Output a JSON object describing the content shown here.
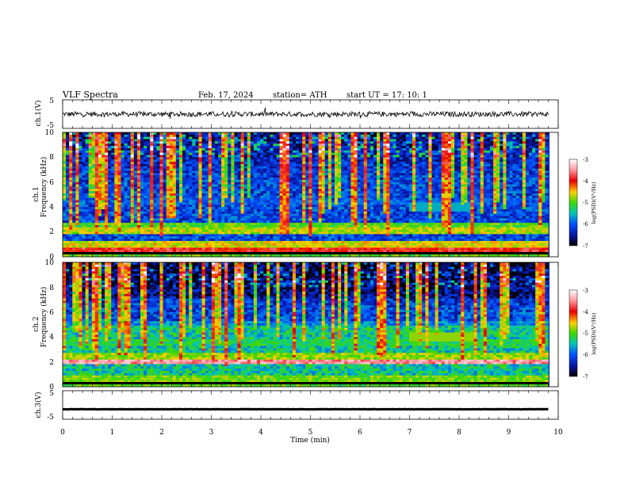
{
  "header": {
    "title": "VLF  Spectra",
    "date": "Feb. 17, 2024",
    "station": "station= ATH",
    "start_ut": "start  UT  =    17: 10: 1"
  },
  "chart_data": [
    {
      "type": "line",
      "panel": "ch1-waveform",
      "ylabel": "ch.1(V)",
      "y_ticks": [
        "5",
        "-5"
      ],
      "ylim": [
        -5,
        5
      ],
      "xlim": [
        0,
        10
      ],
      "baseline": 0,
      "noise_amplitude": 0.9
    },
    {
      "type": "heatmap",
      "panel": "ch1-spectrogram",
      "ylabel_top": "ch.1",
      "ylabel": "Frequency  (kHz)",
      "y_ticks": [
        "0",
        "2",
        "4",
        "6",
        "8",
        "10"
      ],
      "ylim": [
        0,
        10
      ],
      "xlim": [
        0,
        9.8
      ],
      "colorbar": {
        "label": "log(PSD)(V²/Hz)",
        "ticks": [
          "-3",
          "-4",
          "-5",
          "-6",
          "-7"
        ],
        "range": [
          -7,
          -3
        ]
      },
      "bands": [
        {
          "f": 0.1,
          "level": -5.0
        },
        {
          "f": 0.5,
          "level": -3.9
        },
        {
          "f": 1.0,
          "level": -4.6
        },
        {
          "f": 2.1,
          "level": -4.7
        },
        {
          "f": 2.4,
          "level": -5.0
        },
        {
          "f": 4.5,
          "level": -6.1
        }
      ]
    },
    {
      "type": "heatmap",
      "panel": "ch2-spectrogram",
      "ylabel_top": "ch.2",
      "ylabel": "Frequency  (kHz)",
      "y_ticks": [
        "0",
        "2",
        "4",
        "6",
        "8",
        "10"
      ],
      "ylim": [
        0,
        10
      ],
      "xlim": [
        0,
        9.8
      ],
      "colorbar": {
        "label": "log(PSD)(V²/Hz)",
        "ticks": [
          "-3",
          "-4",
          "-5",
          "-6",
          "-7"
        ],
        "range": [
          -7,
          -3
        ]
      },
      "bands": [
        {
          "f": 0.1,
          "level": -5.0
        },
        {
          "f": 0.6,
          "level": -4.9
        },
        {
          "f": 2.0,
          "level": -3.5
        },
        {
          "f": 2.5,
          "level": -4.8
        },
        {
          "f": 3.5,
          "level": -5.3
        },
        {
          "f": 5.0,
          "level": -5.8
        }
      ]
    },
    {
      "type": "line",
      "panel": "ch3-waveform",
      "ylabel": "ch.3(V)",
      "y_ticks": [
        "5",
        "-5"
      ],
      "ylim": [
        -5,
        5
      ],
      "xlim": [
        0,
        10
      ],
      "baseline": -1.5,
      "noise_amplitude": 0.05,
      "xlabel": "Time  (min)",
      "x_ticks": [
        "0",
        "1",
        "2",
        "3",
        "4",
        "5",
        "6",
        "7",
        "8",
        "9",
        "10"
      ]
    }
  ]
}
